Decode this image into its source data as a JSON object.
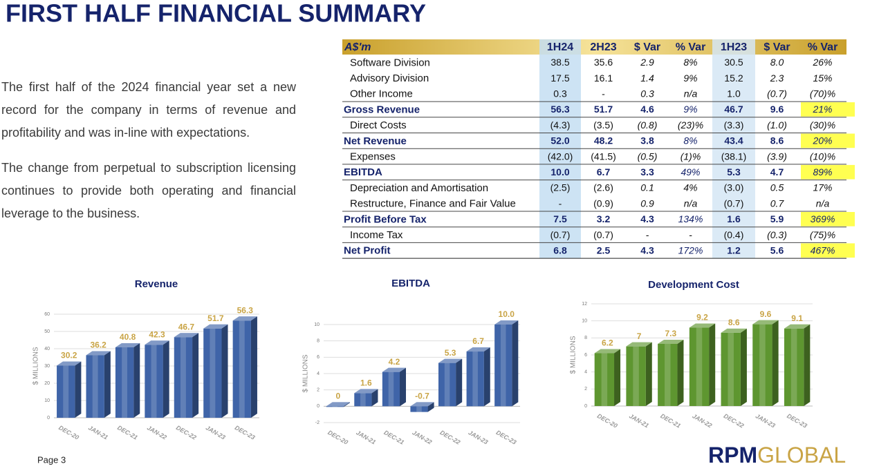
{
  "title": "FIRST HALF FINANCIAL SUMMARY",
  "paragraphs": [
    "The first half of the 2024 financial year set a new record for the company in terms of revenue and profitability and was in-line with expectations.",
    "The change from perpetual to subscription licensing continues to provide both operating and financial leverage to the business."
  ],
  "table": {
    "header": [
      "A$'m",
      "1H24",
      "2H23",
      "$ Var",
      "% Var",
      "1H23",
      "$ Var",
      "% Var"
    ],
    "rows": [
      {
        "cells": [
          "Software Division",
          "38.5",
          "35.6",
          "2.9",
          "8%",
          "30.5",
          "8.0",
          "26%"
        ],
        "bold": false,
        "highlight": false
      },
      {
        "cells": [
          "Advisory Division",
          "17.5",
          "16.1",
          "1.4",
          "9%",
          "15.2",
          "2.3",
          "15%"
        ],
        "bold": false,
        "highlight": false
      },
      {
        "cells": [
          "Other Income",
          "0.3",
          "-",
          "0.3",
          "n/a",
          "1.0",
          "(0.7)",
          "(70)%"
        ],
        "bold": false,
        "highlight": false
      },
      {
        "cells": [
          "Gross Revenue",
          "56.3",
          "51.7",
          "4.6",
          "9%",
          "46.7",
          "9.6",
          "21%"
        ],
        "bold": true,
        "highlight": true
      },
      {
        "cells": [
          "Direct Costs",
          "(4.3)",
          "(3.5)",
          "(0.8)",
          "(23)%",
          "(3.3)",
          "(1.0)",
          "(30)%"
        ],
        "bold": false,
        "highlight": false
      },
      {
        "cells": [
          "Net Revenue",
          "52.0",
          "48.2",
          "3.8",
          "8%",
          "43.4",
          "8.6",
          "20%"
        ],
        "bold": true,
        "highlight": true
      },
      {
        "cells": [
          "Expenses",
          "(42.0)",
          "(41.5)",
          "(0.5)",
          "(1)%",
          "(38.1)",
          "(3.9)",
          "(10)%"
        ],
        "bold": false,
        "highlight": false
      },
      {
        "cells": [
          "EBITDA",
          "10.0",
          "6.7",
          "3.3",
          "49%",
          "5.3",
          "4.7",
          "89%"
        ],
        "bold": true,
        "highlight": true
      },
      {
        "cells": [
          "Depreciation and Amortisation",
          "(2.5)",
          "(2.6)",
          "0.1",
          "4%",
          "(3.0)",
          "0.5",
          "17%"
        ],
        "bold": false,
        "highlight": false
      },
      {
        "cells": [
          "Restructure, Finance and Fair Value",
          "-",
          "(0.9)",
          "0.9",
          "n/a",
          "(0.7)",
          "0.7",
          "n/a"
        ],
        "bold": false,
        "highlight": false
      },
      {
        "cells": [
          "Profit Before Tax",
          "7.5",
          "3.2",
          "4.3",
          "134%",
          "1.6",
          "5.9",
          "369%"
        ],
        "bold": true,
        "highlight": true
      },
      {
        "cells": [
          "Income Tax",
          "(0.7)",
          "(0.7)",
          "-",
          "-",
          "(0.4)",
          "(0.3)",
          "(75)%"
        ],
        "bold": false,
        "highlight": false
      },
      {
        "cells": [
          "Net Profit",
          "6.8",
          "2.5",
          "4.3",
          "172%",
          "1.2",
          "5.6",
          "467%"
        ],
        "bold": true,
        "highlight": true
      }
    ]
  },
  "chart_data": [
    {
      "type": "bar3d",
      "title": "Revenue",
      "y_label": "$ MILLIONS",
      "categories": [
        "DEC-20",
        "JAN-21",
        "DEC-21",
        "JAN-22",
        "DEC-22",
        "JAN-23",
        "DEC-23"
      ],
      "values": [
        30.2,
        36.2,
        40.8,
        42.3,
        46.7,
        51.7,
        56.3
      ],
      "color": "#3f64a8",
      "ylim": [
        0,
        60
      ],
      "yticks": [
        0,
        10,
        20,
        30,
        40,
        50,
        60
      ],
      "grid": true
    },
    {
      "type": "bar3d",
      "title": "EBITDA",
      "y_label": "$ MILLIONS",
      "categories": [
        "DEC-20",
        "JAN-21",
        "DEC-21",
        "JAN-22",
        "DEC-22",
        "JAN-23",
        "DEC-23"
      ],
      "values": [
        0,
        1.6,
        4.2,
        -0.7,
        5.3,
        6.7,
        10.0
      ],
      "value_labels": [
        "0",
        "1.6",
        "4.2",
        "-0.7",
        "5.3",
        "6.7",
        "10.0"
      ],
      "color": "#3f64a8",
      "ylim": [
        -2,
        10
      ],
      "yticks": [
        -2,
        0,
        2,
        4,
        6,
        8,
        10
      ],
      "grid": true
    },
    {
      "type": "bar3d",
      "title": "Development Cost",
      "y_label": "$ MILLIONS",
      "categories": [
        "DEC-20",
        "JAN-21",
        "DEC-21",
        "JAN-22",
        "DEC-22",
        "JAN-23",
        "DEC-23"
      ],
      "values": [
        6.2,
        7,
        7.3,
        9.2,
        8.6,
        9.6,
        9.1
      ],
      "color": "#5e9630",
      "ylim": [
        0,
        12
      ],
      "yticks": [
        0,
        2,
        4,
        6,
        8,
        10,
        12
      ],
      "grid": true
    }
  ],
  "footer": {
    "page": "Page 3",
    "logo": {
      "bold": "RPM",
      "light": "GLOBAL"
    }
  }
}
